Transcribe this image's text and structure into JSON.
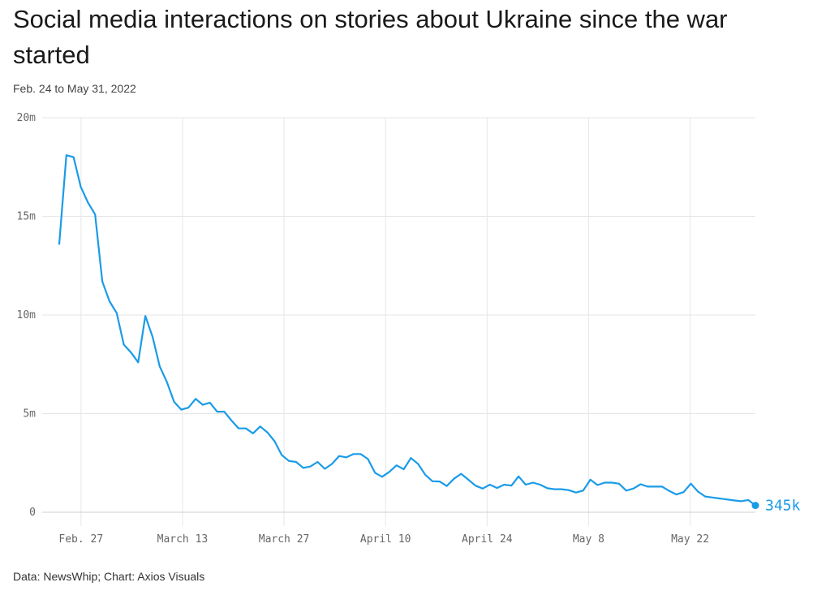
{
  "chart_data": {
    "type": "line",
    "title": "Social media interactions on stories about Ukraine since the war started",
    "subtitle": "Feb. 24 to May 31, 2022",
    "source": "Data: NewsWhip; Chart: Axios Visuals",
    "xlabel": "",
    "ylabel": "",
    "x_start": "2022-02-24",
    "x_end": "2022-05-31",
    "ylim": [
      0,
      20000000
    ],
    "y_ticks": [
      {
        "value": 0,
        "label": "0"
      },
      {
        "value": 5000000,
        "label": "5m"
      },
      {
        "value": 10000000,
        "label": "10m"
      },
      {
        "value": 15000000,
        "label": "15m"
      },
      {
        "value": 20000000,
        "label": "20m"
      }
    ],
    "x_ticks": [
      {
        "date": "2022-02-27",
        "label": "Feb. 27"
      },
      {
        "date": "2022-03-13",
        "label": "March 13"
      },
      {
        "date": "2022-03-27",
        "label": "March 27"
      },
      {
        "date": "2022-04-10",
        "label": "April 10"
      },
      {
        "date": "2022-04-24",
        "label": "April 24"
      },
      {
        "date": "2022-05-08",
        "label": "May 8"
      },
      {
        "date": "2022-05-22",
        "label": "May 22"
      }
    ],
    "grid": true,
    "line_color": "#1a9be8",
    "end_label": "345k",
    "series": [
      {
        "values": [
          13600000,
          18100000,
          18000000,
          16500000,
          15700000,
          15100000,
          11700000,
          10700000,
          10100000,
          8500000,
          8100000,
          7600000,
          9950000,
          8900000,
          7400000,
          6600000,
          5600000,
          5200000,
          5300000,
          5750000,
          5450000,
          5550000,
          5100000,
          5100000,
          4650000,
          4250000,
          4250000,
          4000000,
          4350000,
          4050000,
          3600000,
          2900000,
          2600000,
          2550000,
          2250000,
          2320000,
          2550000,
          2200000,
          2450000,
          2850000,
          2780000,
          2950000,
          2950000,
          2700000,
          2000000,
          1800000,
          2050000,
          2380000,
          2180000,
          2750000,
          2450000,
          1900000,
          1570000,
          1560000,
          1330000,
          1700000,
          1950000,
          1650000,
          1350000,
          1200000,
          1400000,
          1230000,
          1400000,
          1350000,
          1820000,
          1400000,
          1500000,
          1400000,
          1220000,
          1170000,
          1170000,
          1120000,
          1000000,
          1100000,
          1650000,
          1380000,
          1500000,
          1500000,
          1450000,
          1100000,
          1200000,
          1420000,
          1300000,
          1300000,
          1300000,
          1080000,
          900000,
          1020000,
          1450000,
          1050000,
          800000,
          750000,
          700000,
          650000,
          600000,
          560000,
          620000,
          345000
        ]
      }
    ]
  }
}
